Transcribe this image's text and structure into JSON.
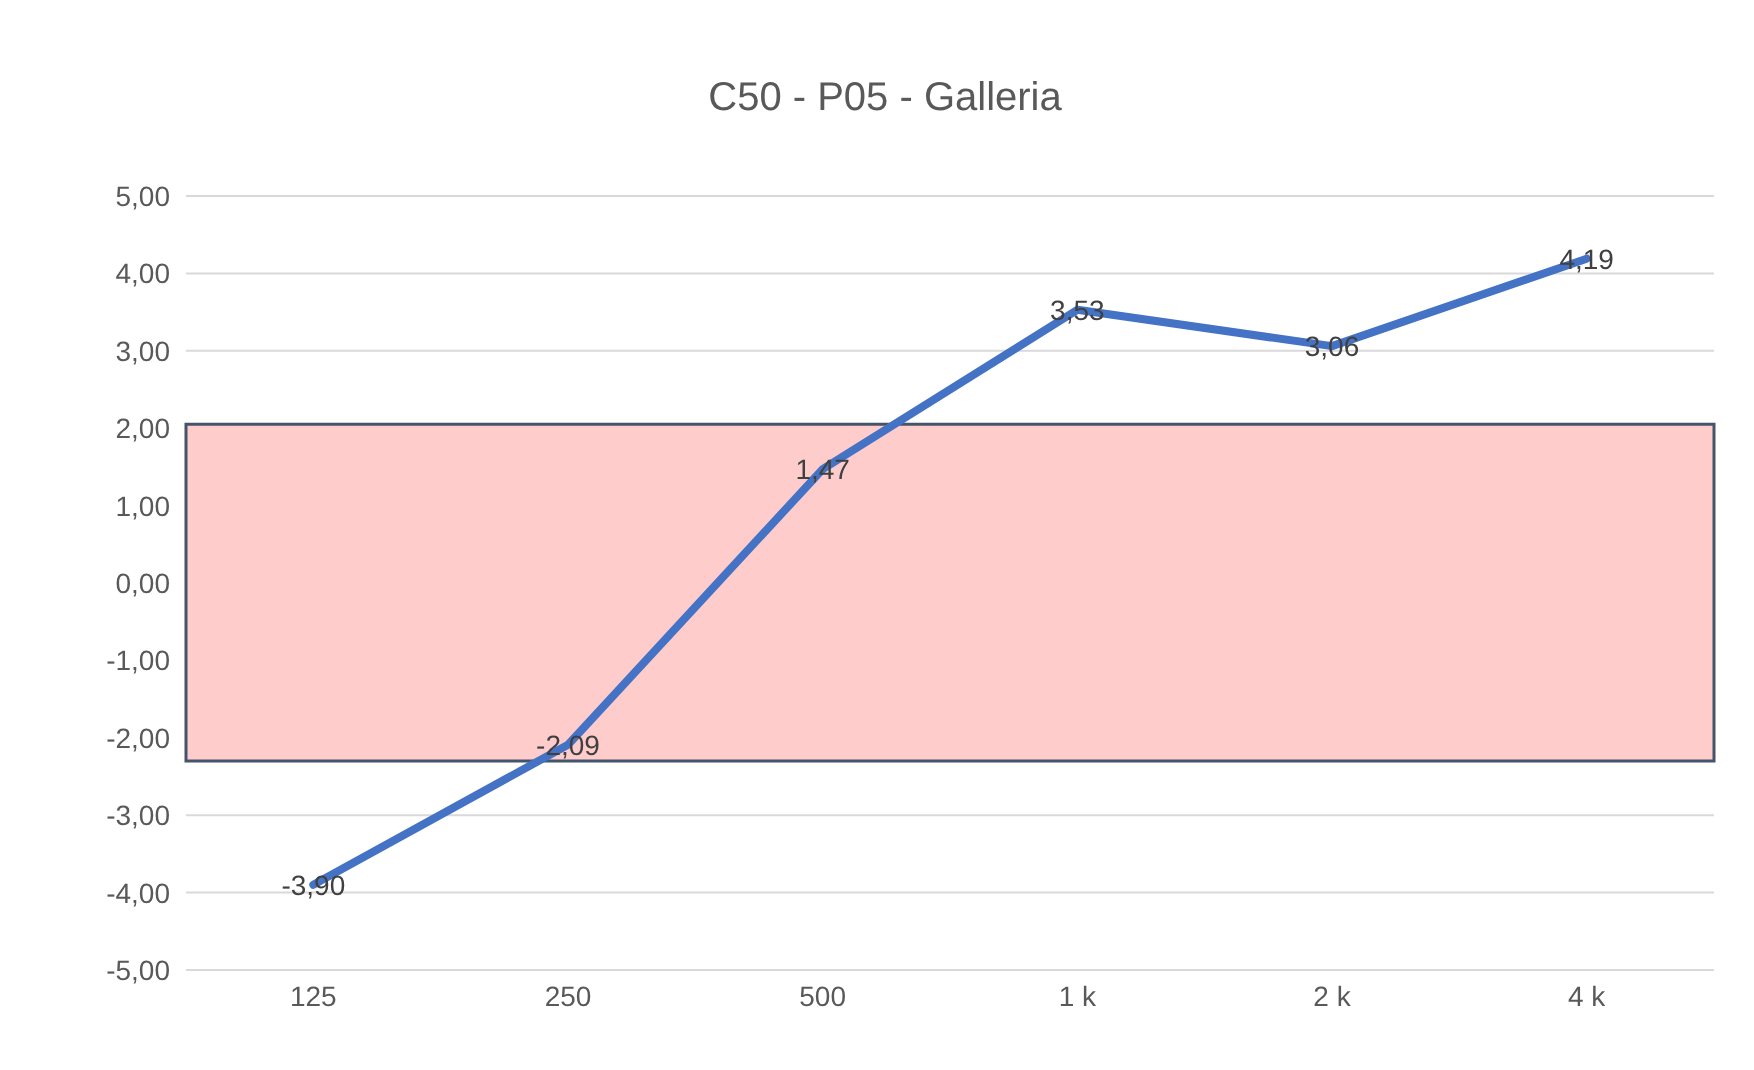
{
  "chart_data": {
    "type": "line",
    "title": "C50 - P05 - Galleria",
    "categories": [
      "125",
      "250",
      "500",
      "1 k",
      "2 k",
      "4 k"
    ],
    "series": [
      {
        "color": "#4472c4",
        "values": [
          -3.9,
          -2.09,
          1.47,
          3.53,
          3.06,
          4.19
        ],
        "value_labels": [
          "-3,90",
          "-2,09",
          "1,47",
          "3,53",
          "3,06",
          "4,19"
        ]
      }
    ],
    "ylim": [
      -5,
      5
    ],
    "yticks": [
      {
        "value": -5,
        "label": "-5,00"
      },
      {
        "value": -4,
        "label": "-4,00"
      },
      {
        "value": -3,
        "label": "-3,00"
      },
      {
        "value": -2,
        "label": "-2,00"
      },
      {
        "value": -1,
        "label": "-1,00"
      },
      {
        "value": 0,
        "label": "0,00"
      },
      {
        "value": 1,
        "label": "1,00"
      },
      {
        "value": 2,
        "label": "2,00"
      },
      {
        "value": 3,
        "label": "3,00"
      },
      {
        "value": 4,
        "label": "4,00"
      },
      {
        "value": 5,
        "label": "5,00"
      }
    ],
    "bands": [
      {
        "axis": "y",
        "from": -2.3,
        "to": 2.05,
        "color": "#ffcccc"
      }
    ],
    "grid": "y",
    "marker": "none",
    "line_style": "solid",
    "legend": false
  }
}
